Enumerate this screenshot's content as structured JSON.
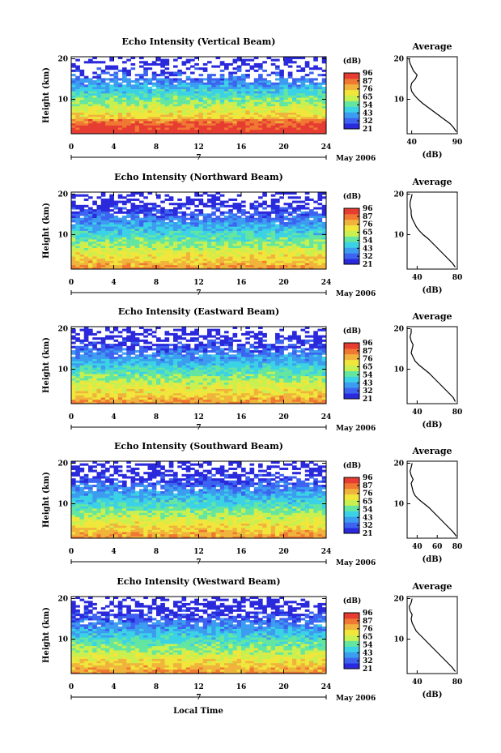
{
  "chart_data": [
    {
      "type": "heatmap",
      "title": "Echo Intensity (Vertical Beam)",
      "ylabel": "Height (km)",
      "ylim": [
        1.5,
        20.5
      ],
      "yticks": [
        10,
        20
      ],
      "xlim": [
        0,
        24
      ],
      "xticks": [
        0,
        4,
        8,
        12,
        16,
        20,
        24
      ],
      "date_label": "7",
      "month_label": "May 2006",
      "colorbar": {
        "title": "(dB)",
        "ticks": [
          96,
          87,
          76,
          65,
          54,
          43,
          32,
          21
        ]
      },
      "profile": {
        "title": "Average",
        "xlabel": "(dB)",
        "xticks": [
          40,
          90
        ],
        "xlim": [
          35,
          90
        ],
        "yticks": [
          10,
          20
        ],
        "heights": [
          2,
          3,
          4,
          5,
          6,
          7,
          8,
          9,
          10,
          11,
          12,
          13,
          14,
          15,
          16,
          17,
          18,
          19,
          20
        ],
        "values": [
          89,
          86,
          82,
          76,
          70,
          64,
          58,
          52,
          47,
          43,
          40,
          39,
          40,
          44,
          46,
          42,
          40,
          38,
          37
        ]
      }
    },
    {
      "type": "heatmap",
      "title": "Echo Intensity (Northward Beam)",
      "ylabel": "Height (km)",
      "ylim": [
        1.5,
        20.5
      ],
      "yticks": [
        10,
        20
      ],
      "xlim": [
        0,
        24
      ],
      "xticks": [
        0,
        4,
        8,
        12,
        16,
        20,
        24
      ],
      "date_label": "7",
      "month_label": "May 2006",
      "colorbar": {
        "title": "(dB)",
        "ticks": [
          96,
          87,
          76,
          65,
          54,
          43,
          32,
          21
        ]
      },
      "profile": {
        "title": "Average",
        "xlabel": "(dB)",
        "xticks": [
          40,
          80
        ],
        "xlim": [
          30,
          80
        ],
        "yticks": [
          10,
          20
        ],
        "heights": [
          2,
          3,
          4,
          5,
          6,
          7,
          8,
          9,
          10,
          11,
          12,
          13,
          14,
          15,
          16,
          17,
          18,
          19,
          20
        ],
        "values": [
          78,
          75,
          71,
          67,
          63,
          59,
          55,
          51,
          46,
          42,
          39,
          37,
          35,
          34,
          34,
          33,
          33,
          34,
          35
        ]
      }
    },
    {
      "type": "heatmap",
      "title": "Echo Intensity (Eastward Beam)",
      "ylabel": "Height (km)",
      "ylim": [
        1.5,
        20.5
      ],
      "yticks": [
        10,
        20
      ],
      "xlim": [
        0,
        24
      ],
      "xticks": [
        0,
        4,
        8,
        12,
        16,
        20,
        24
      ],
      "date_label": "7",
      "month_label": "May 2006",
      "colorbar": {
        "title": "(dB)",
        "ticks": [
          96,
          87,
          76,
          65,
          54,
          43,
          32,
          21
        ]
      },
      "profile": {
        "title": "Average",
        "xlabel": "(dB)",
        "xticks": [
          40,
          80
        ],
        "xlim": [
          30,
          80
        ],
        "yticks": [
          10,
          20
        ],
        "heights": [
          2,
          3,
          4,
          5,
          6,
          7,
          8,
          9,
          10,
          11,
          12,
          13,
          14,
          15,
          16,
          17,
          18,
          19,
          20
        ],
        "values": [
          78,
          76,
          72,
          68,
          64,
          60,
          56,
          52,
          47,
          42,
          38,
          36,
          34,
          35,
          36,
          34,
          33,
          34,
          34
        ]
      }
    },
    {
      "type": "heatmap",
      "title": "Echo Intensity (Southward Beam)",
      "ylabel": "Height (km)",
      "ylim": [
        1.5,
        20.5
      ],
      "yticks": [
        10,
        20
      ],
      "xlim": [
        0,
        24
      ],
      "xticks": [
        0,
        4,
        8,
        12,
        16,
        20,
        24
      ],
      "date_label": "7",
      "month_label": "May 2006",
      "colorbar": {
        "title": "(dB)",
        "ticks": [
          96,
          87,
          76,
          65,
          54,
          43,
          32,
          21
        ]
      },
      "profile": {
        "title": "Average",
        "xlabel": "(dB)",
        "xticks": [
          40,
          60,
          80
        ],
        "xlim": [
          30,
          80
        ],
        "yticks": [
          10,
          20
        ],
        "heights": [
          2,
          3,
          4,
          5,
          6,
          7,
          8,
          9,
          10,
          11,
          12,
          13,
          14,
          15,
          16,
          17,
          18,
          19,
          20
        ],
        "values": [
          79,
          76,
          72,
          68,
          64,
          60,
          56,
          52,
          47,
          42,
          38,
          36,
          35,
          34,
          36,
          34,
          33,
          34,
          35
        ]
      }
    },
    {
      "type": "heatmap",
      "title": "Echo Intensity (Westward Beam)",
      "ylabel": "Height (km)",
      "ylim": [
        1.5,
        20.5
      ],
      "yticks": [
        10,
        20
      ],
      "xlim": [
        0,
        24
      ],
      "xticks": [
        0,
        4,
        8,
        12,
        16,
        20,
        24
      ],
      "date_label": "7",
      "month_label": "May 2006",
      "colorbar": {
        "title": "(dB)",
        "ticks": [
          96,
          87,
          76,
          65,
          54,
          43,
          32,
          21
        ]
      },
      "profile": {
        "title": "Average",
        "xlabel": "(dB)",
        "xticks": [
          40,
          80
        ],
        "xlim": [
          30,
          80
        ],
        "yticks": [
          10,
          20
        ],
        "heights": [
          2,
          3,
          4,
          5,
          6,
          7,
          8,
          9,
          10,
          11,
          12,
          13,
          14,
          15,
          16,
          17,
          18,
          19,
          20
        ],
        "values": [
          78,
          75,
          71,
          67,
          63,
          59,
          55,
          51,
          47,
          43,
          39,
          37,
          35,
          34,
          35,
          33,
          32,
          34,
          35
        ]
      }
    }
  ],
  "xlabel": "Local Time",
  "colormap": [
    "#2a2adc",
    "#3c64f0",
    "#3c9cf0",
    "#3cd2e6",
    "#64e6a0",
    "#c8f050",
    "#f0e63c",
    "#f0b43c",
    "#f07832",
    "#e63c32"
  ],
  "missing_color": "#ffffff"
}
